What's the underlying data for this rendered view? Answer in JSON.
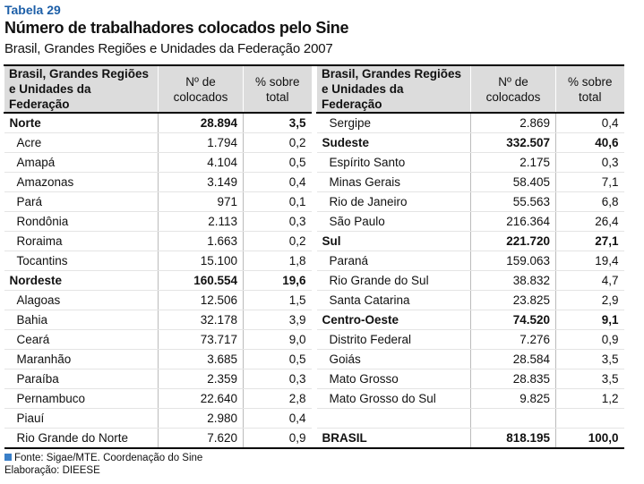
{
  "header": {
    "label": "Tabela 29",
    "title": "Número de trabalhadores colocados pelo Sine",
    "subtitle": "Brasil, Grandes Regiões e Unidades da Federação 2007"
  },
  "table": {
    "columns": [
      "Brasil, Grandes Regiões e Unidades da Federação",
      "Nº de colocados",
      "% sobre total"
    ],
    "left": [
      {
        "name": "Norte",
        "n": "28.894",
        "pct": "3,5",
        "bold": true
      },
      {
        "name": "Acre",
        "n": "1.794",
        "pct": "0,2"
      },
      {
        "name": "Amapá",
        "n": "4.104",
        "pct": "0,5"
      },
      {
        "name": "Amazonas",
        "n": "3.149",
        "pct": "0,4"
      },
      {
        "name": "Pará",
        "n": "971",
        "pct": "0,1"
      },
      {
        "name": "Rondônia",
        "n": "2.113",
        "pct": "0,3"
      },
      {
        "name": "Roraima",
        "n": "1.663",
        "pct": "0,2"
      },
      {
        "name": "Tocantins",
        "n": "15.100",
        "pct": "1,8"
      },
      {
        "name": "Nordeste",
        "n": "160.554",
        "pct": "19,6",
        "bold": true
      },
      {
        "name": "Alagoas",
        "n": "12.506",
        "pct": "1,5"
      },
      {
        "name": "Bahia",
        "n": "32.178",
        "pct": "3,9"
      },
      {
        "name": "Ceará",
        "n": "73.717",
        "pct": "9,0"
      },
      {
        "name": "Maranhão",
        "n": "3.685",
        "pct": "0,5"
      },
      {
        "name": "Paraíba",
        "n": "2.359",
        "pct": "0,3"
      },
      {
        "name": "Pernambuco",
        "n": "22.640",
        "pct": "2,8"
      },
      {
        "name": "Piauí",
        "n": "2.980",
        "pct": "0,4"
      },
      {
        "name": "Rio Grande do Norte",
        "n": "7.620",
        "pct": "0,9"
      }
    ],
    "right": [
      {
        "name": "Sergipe",
        "n": "2.869",
        "pct": "0,4"
      },
      {
        "name": "Sudeste",
        "n": "332.507",
        "pct": "40,6",
        "bold": true
      },
      {
        "name": "Espírito Santo",
        "n": "2.175",
        "pct": "0,3"
      },
      {
        "name": "Minas Gerais",
        "n": "58.405",
        "pct": "7,1"
      },
      {
        "name": "Rio de Janeiro",
        "n": "55.563",
        "pct": "6,8"
      },
      {
        "name": "São Paulo",
        "n": "216.364",
        "pct": "26,4"
      },
      {
        "name": "Sul",
        "n": "221.720",
        "pct": "27,1",
        "bold": true
      },
      {
        "name": "Paraná",
        "n": "159.063",
        "pct": "19,4"
      },
      {
        "name": "Rio Grande do Sul",
        "n": "38.832",
        "pct": "4,7"
      },
      {
        "name": "Santa Catarina",
        "n": "23.825",
        "pct": "2,9"
      },
      {
        "name": "Centro-Oeste",
        "n": "74.520",
        "pct": "9,1",
        "bold": true
      },
      {
        "name": "Distrito Federal",
        "n": "7.276",
        "pct": "0,9"
      },
      {
        "name": "Goiás",
        "n": "28.584",
        "pct": "3,5"
      },
      {
        "name": "Mato Grosso",
        "n": "28.835",
        "pct": "3,5"
      },
      {
        "name": "Mato Grosso do Sul",
        "n": "9.825",
        "pct": "1,2"
      }
    ],
    "total": {
      "name": "BRASIL",
      "n": "818.195",
      "pct": "100,0"
    }
  },
  "footer": {
    "source": "Fonte: Sigae/MTE. Coordenação do Sine",
    "credit": "Elaboração: DIEESE"
  }
}
